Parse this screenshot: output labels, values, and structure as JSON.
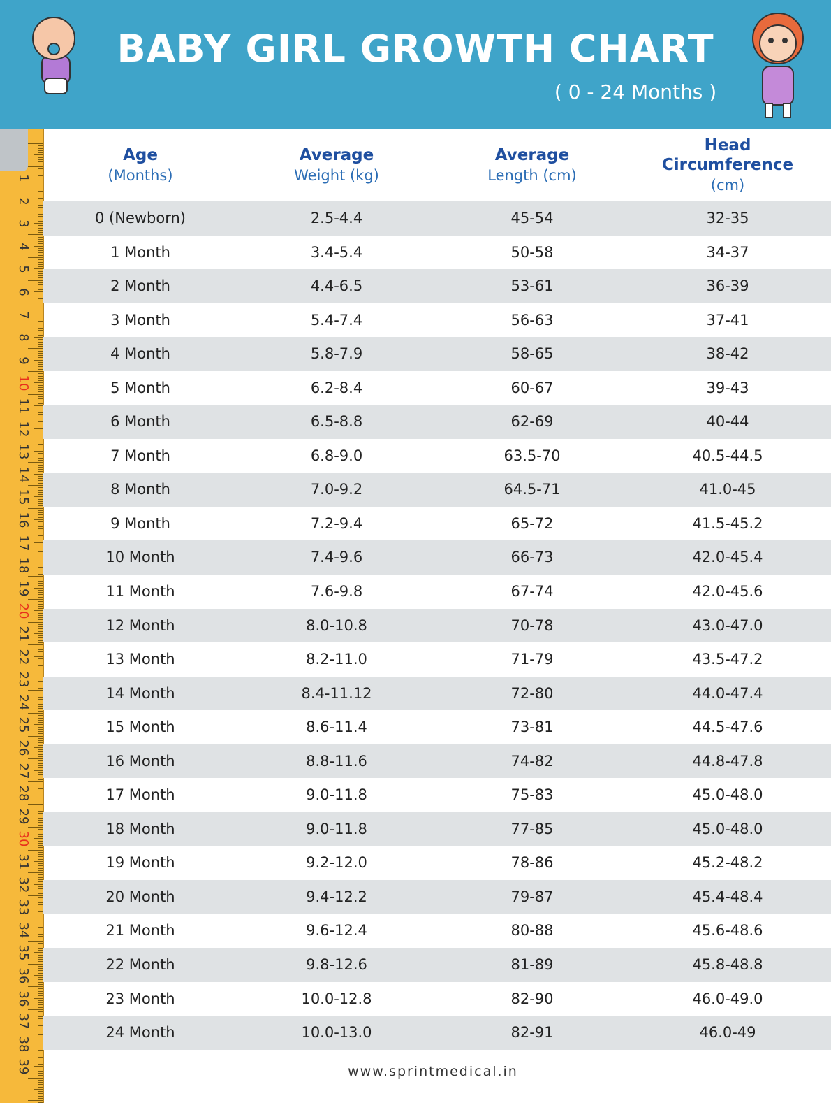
{
  "header": {
    "title": "BABY GIRL GROWTH CHART",
    "subtitle": "( 0 - 24 Months )"
  },
  "table": {
    "columns": [
      {
        "title": "Age",
        "subtitle": "(Months)"
      },
      {
        "title": "Average",
        "subtitle": "Weight (kg)"
      },
      {
        "title": "Average",
        "subtitle": "Length (cm)"
      },
      {
        "title": "Head Circumference",
        "subtitle": "(cm)"
      }
    ],
    "rows": [
      [
        "0 (Newborn)",
        "2.5-4.4",
        "45-54",
        "32-35"
      ],
      [
        "1 Month",
        "3.4-5.4",
        "50-58",
        "34-37"
      ],
      [
        "2 Month",
        "4.4-6.5",
        "53-61",
        "36-39"
      ],
      [
        "3 Month",
        "5.4-7.4",
        "56-63",
        "37-41"
      ],
      [
        "4 Month",
        "5.8-7.9",
        "58-65",
        "38-42"
      ],
      [
        "5 Month",
        "6.2-8.4",
        "60-67",
        "39-43"
      ],
      [
        "6 Month",
        "6.5-8.8",
        "62-69",
        "40-44"
      ],
      [
        "7 Month",
        "6.8-9.0",
        "63.5-70",
        "40.5-44.5"
      ],
      [
        "8 Month",
        "7.0-9.2",
        "64.5-71",
        "41.0-45"
      ],
      [
        "9 Month",
        "7.2-9.4",
        "65-72",
        "41.5-45.2"
      ],
      [
        "10 Month",
        "7.4-9.6",
        "66-73",
        "42.0-45.4"
      ],
      [
        "11 Month",
        "7.6-9.8",
        "67-74",
        "42.0-45.6"
      ],
      [
        "12 Month",
        "8.0-10.8",
        "70-78",
        "43.0-47.0"
      ],
      [
        "13 Month",
        "8.2-11.0",
        "71-79",
        "43.5-47.2"
      ],
      [
        "14 Month",
        "8.4-11.12",
        "72-80",
        "44.0-47.4"
      ],
      [
        "15 Month",
        "8.6-11.4",
        "73-81",
        "44.5-47.6"
      ],
      [
        "16 Month",
        "8.8-11.6",
        "74-82",
        "44.8-47.8"
      ],
      [
        "17 Month",
        "9.0-11.8",
        "75-83",
        "45.0-48.0"
      ],
      [
        "18 Month",
        "9.0-11.8",
        "77-85",
        "45.0-48.0"
      ],
      [
        "19 Month",
        "9.2-12.0",
        "78-86",
        "45.2-48.2"
      ],
      [
        "20 Month",
        "9.4-12.2",
        "79-87",
        "45.4-48.4"
      ],
      [
        "21 Month",
        "9.6-12.4",
        "80-88",
        "45.6-48.6"
      ],
      [
        "22 Month",
        "9.8-12.6",
        "81-89",
        "45.8-48.8"
      ],
      [
        "23 Month",
        "10.0-12.8",
        "82-90",
        "46.0-49.0"
      ],
      [
        "24 Month",
        "10.0-13.0",
        "82-91",
        "46.0-49"
      ]
    ]
  },
  "ruler": {
    "labels": [
      "1",
      "2",
      "3",
      "4",
      "5",
      "6",
      "7",
      "8",
      "9",
      "10",
      "11",
      "12",
      "13",
      "14",
      "15",
      "16",
      "17",
      "18",
      "19",
      "20",
      "21",
      "22",
      "23",
      "24",
      "25",
      "26",
      "27",
      "28",
      "29",
      "30",
      "31",
      "32",
      "33",
      "34",
      "35",
      "36",
      "36",
      "37",
      "38",
      "39"
    ]
  },
  "footer": {
    "url": "www.sprintmedical.in"
  }
}
